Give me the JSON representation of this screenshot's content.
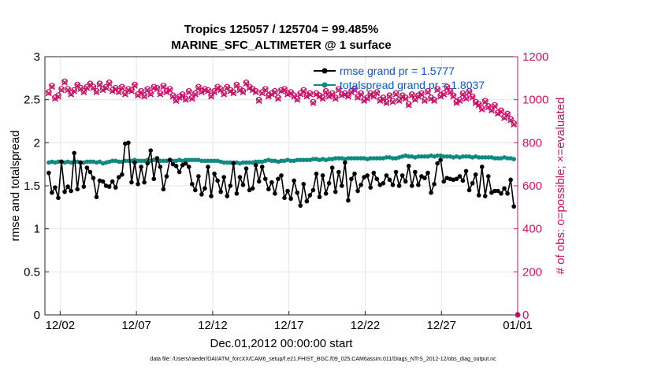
{
  "chart_data": {
    "type": "line",
    "title_line1": "Tropics 125057 / 125704 = 99.485%",
    "title_line2": "MARINE_SFC_ALTIMETER @ 1 surface",
    "xlabel": "Dec.01,2012 00:00:00 start",
    "ylabel_left": "rmse and totalspread",
    "ylabel_right": "# of obs: o=possible; ×=evaluated",
    "xlim": [
      0,
      31
    ],
    "ylim_left": [
      0,
      3
    ],
    "ylim_right": [
      0,
      1200
    ],
    "x_ticks": [
      {
        "value": 1,
        "label": "12/02"
      },
      {
        "value": 6,
        "label": "12/07"
      },
      {
        "value": 11,
        "label": "12/12"
      },
      {
        "value": 16,
        "label": "12/17"
      },
      {
        "value": 21,
        "label": "12/22"
      },
      {
        "value": 26,
        "label": "12/27"
      },
      {
        "value": 31,
        "label": "01/01"
      }
    ],
    "y_ticks_left": [
      "0",
      "0.5",
      "1",
      "1.5",
      "2",
      "2.5",
      "3"
    ],
    "y_ticks_right": [
      "0",
      "200",
      "400",
      "600",
      "800",
      "1000",
      "1200"
    ],
    "legend": [
      {
        "name": "rmse grand pr = 1.5777",
        "color": "#000000"
      },
      {
        "name": "totalspread grand pr = 1.8037",
        "color": "#0f8a80"
      }
    ],
    "series": [
      {
        "name": "rmse",
        "axis": "left",
        "color": "#000000",
        "values": [
          1.65,
          1.42,
          1.48,
          1.36,
          1.78,
          1.43,
          1.49,
          1.44,
          1.88,
          1.46,
          1.77,
          1.49,
          1.71,
          1.66,
          1.59,
          1.37,
          1.56,
          1.55,
          1.5,
          1.49,
          1.55,
          1.48,
          1.6,
          1.63,
          1.99,
          2.0,
          1.54,
          1.77,
          1.52,
          1.72,
          1.54,
          1.76,
          1.91,
          1.58,
          1.82,
          1.72,
          1.46,
          1.61,
          1.8,
          1.75,
          1.73,
          1.66,
          1.74,
          1.76,
          1.72,
          1.52,
          1.45,
          1.61,
          1.4,
          1.47,
          1.72,
          1.38,
          1.64,
          1.56,
          1.43,
          1.6,
          1.38,
          1.5,
          1.76,
          1.41,
          1.6,
          1.51,
          1.7,
          1.45,
          1.47,
          1.74,
          1.55,
          1.72,
          1.58,
          1.46,
          1.54,
          1.41,
          1.58,
          1.62,
          1.36,
          1.44,
          1.35,
          1.56,
          1.42,
          1.27,
          1.52,
          1.32,
          1.39,
          1.45,
          1.64,
          1.37,
          1.62,
          1.41,
          1.53,
          1.71,
          1.43,
          1.66,
          1.5,
          1.77,
          1.33,
          1.58,
          1.64,
          1.44,
          1.51,
          1.6,
          1.62,
          1.48,
          1.65,
          1.58,
          1.51,
          1.53,
          1.62,
          1.57,
          1.51,
          1.66,
          1.5,
          1.62,
          1.55,
          1.73,
          1.5,
          1.66,
          1.51,
          1.61,
          1.59,
          1.65,
          1.42,
          1.52,
          1.76,
          1.8,
          1.55,
          1.59,
          1.58,
          1.57,
          1.58,
          1.61,
          1.56,
          1.67,
          1.45,
          1.53,
          1.63,
          1.39,
          1.72,
          1.38,
          1.61,
          1.42,
          1.44,
          1.44,
          1.41,
          1.47,
          1.41,
          1.57,
          1.26
        ]
      },
      {
        "name": "totalspread",
        "axis": "left",
        "color": "#0f8a80",
        "values": [
          1.77,
          1.78,
          1.77,
          1.78,
          1.78,
          1.77,
          1.78,
          1.77,
          1.78,
          1.78,
          1.77,
          1.77,
          1.78,
          1.78,
          1.78,
          1.77,
          1.78,
          1.76,
          1.77,
          1.78,
          1.79,
          1.79,
          1.78,
          1.78,
          1.79,
          1.79,
          1.79,
          1.8,
          1.79,
          1.79,
          1.79,
          1.8,
          1.79,
          1.8,
          1.79,
          1.79,
          1.79,
          1.79,
          1.8,
          1.79,
          1.79,
          1.8,
          1.79,
          1.8,
          1.8,
          1.8,
          1.8,
          1.8,
          1.79,
          1.79,
          1.79,
          1.79,
          1.79,
          1.79,
          1.78,
          1.77,
          1.77,
          1.77,
          1.77,
          1.77,
          1.76,
          1.77,
          1.77,
          1.77,
          1.77,
          1.78,
          1.78,
          1.78,
          1.79,
          1.8,
          1.79,
          1.79,
          1.78,
          1.79,
          1.79,
          1.8,
          1.79,
          1.79,
          1.8,
          1.8,
          1.8,
          1.8,
          1.8,
          1.81,
          1.81,
          1.8,
          1.81,
          1.8,
          1.81,
          1.81,
          1.82,
          1.82,
          1.82,
          1.81,
          1.82,
          1.82,
          1.82,
          1.82,
          1.82,
          1.82,
          1.81,
          1.82,
          1.82,
          1.82,
          1.82,
          1.82,
          1.83,
          1.83,
          1.82,
          1.82,
          1.83,
          1.84,
          1.85,
          1.84,
          1.84,
          1.83,
          1.84,
          1.84,
          1.84,
          1.84,
          1.85,
          1.84,
          1.85,
          1.85,
          1.84,
          1.84,
          1.84,
          1.83,
          1.84,
          1.83,
          1.84,
          1.84,
          1.84,
          1.83,
          1.84,
          1.83,
          1.83,
          1.83,
          1.83,
          1.83,
          1.82,
          1.82,
          1.82,
          1.83,
          1.82,
          1.82,
          1.81
        ]
      },
      {
        "name": "possible",
        "axis": "right",
        "color": "#cc1166",
        "marker": "o",
        "values": [
          1035,
          1065,
          1010,
          1020,
          1050,
          1085,
          1050,
          1030,
          1045,
          1070,
          1055,
          1040,
          1060,
          1075,
          1060,
          1040,
          1075,
          1050,
          1060,
          1080,
          1045,
          1055,
          1040,
          1060,
          1030,
          1050,
          1045,
          1070,
          1025,
          1040,
          1020,
          1050,
          1030,
          1060,
          1055,
          1030,
          1065,
          1040,
          1050,
          1020,
          1000,
          1015,
          1025,
          1005,
          1040,
          1010,
          1030,
          1060,
          1040,
          1050,
          1045,
          1020,
          1040,
          1060,
          1050,
          1030,
          1060,
          1045,
          1035,
          1070,
          1050,
          1040,
          1080,
          1060,
          1050,
          1040,
          1000,
          1035,
          1050,
          1020,
          1030,
          1040,
          1010,
          1045,
          1050,
          1030,
          1035,
          1020,
          1005,
          1030,
          1045,
          1020,
          1030,
          990,
          1030,
          1020,
          1010,
          1040,
          1020,
          1030,
          1010,
          1050,
          1025,
          1030,
          1020,
          1040,
          1050,
          1015,
          1030,
          1000,
          1010,
          1030,
          1020,
          1035,
          1000,
          1010,
          990,
          1020,
          995,
          1030,
          1000,
          1020,
          1010,
          980,
          1025,
          1005,
          1020,
          1030,
          1000,
          1040,
          1010,
          1000,
          1050,
          1020,
          1030,
          1060,
          1040,
          1020,
          990,
          1000,
          1030,
          1010,
          1040,
          1015,
          990,
          980,
          960,
          995,
          970,
          955,
          975,
          940,
          950,
          920,
          935,
          910,
          890
        ]
      },
      {
        "name": "evaluated",
        "axis": "right",
        "color": "#cc1166",
        "marker": "x",
        "values": [
          1030,
          1060,
          1005,
          1015,
          1045,
          1080,
          1045,
          1025,
          1040,
          1065,
          1050,
          1035,
          1055,
          1070,
          1055,
          1035,
          1070,
          1045,
          1055,
          1075,
          1040,
          1050,
          1035,
          1055,
          1025,
          1045,
          1040,
          1065,
          1020,
          1035,
          1015,
          1045,
          1025,
          1055,
          1050,
          1025,
          1060,
          1035,
          1045,
          1015,
          995,
          1010,
          1020,
          1000,
          1035,
          1005,
          1025,
          1055,
          1035,
          1045,
          1040,
          1015,
          1035,
          1055,
          1045,
          1025,
          1055,
          1040,
          1030,
          1065,
          1045,
          1035,
          1075,
          1055,
          1045,
          1035,
          995,
          1030,
          1045,
          1015,
          1025,
          1035,
          1005,
          1040,
          1045,
          1025,
          1030,
          1015,
          1000,
          1025,
          1040,
          1015,
          1025,
          985,
          1025,
          1015,
          1005,
          1035,
          1015,
          1025,
          1005,
          1045,
          1020,
          1025,
          1015,
          1035,
          1045,
          1010,
          1025,
          995,
          1005,
          1025,
          1015,
          1030,
          995,
          1005,
          985,
          1015,
          990,
          1025,
          995,
          1015,
          1005,
          975,
          1020,
          1000,
          1015,
          1025,
          995,
          1035,
          1005,
          995,
          1045,
          1015,
          1025,
          1055,
          1035,
          1015,
          985,
          995,
          1025,
          1005,
          1035,
          1010,
          985,
          975,
          955,
          990,
          965,
          950,
          970,
          935,
          945,
          915,
          930,
          905,
          885
        ]
      }
    ],
    "outlier_point": {
      "x": 31,
      "y_right": 0
    }
  },
  "footer": "data file: /Users/raeder/DAI/ATM_forcXX/CAM6_setup/f.e21.FHIST_BGC.f09_025.CAM6assim.011/Diags_NTrS_2012-12/obs_diag_output.nc"
}
